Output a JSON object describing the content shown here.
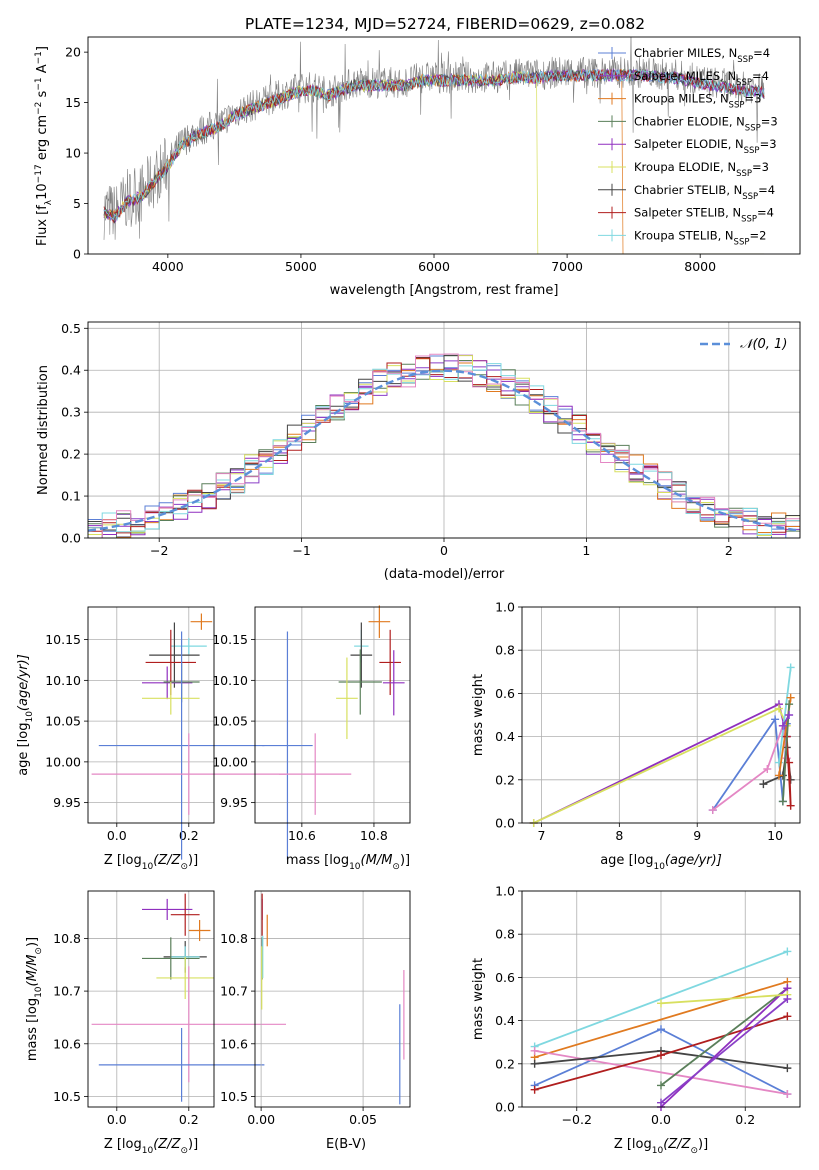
{
  "figure": {
    "title": "PLATE=1234, MJD=52724, FIBERID=0629, z=0.082"
  },
  "colors": {
    "chabrier_miles": "#5b7fd6",
    "salpeter_miles": "#8a3fc7",
    "kroupa_miles": "#e07a20",
    "chabrier_elodie": "#5a7f5a",
    "salpeter_elodie": "#8f2fbf",
    "kroupa_elodie": "#d8e060",
    "chabrier_stelib": "#444444",
    "salpeter_stelib": "#b01e1e",
    "kroupa_stelib": "#7fd8e0",
    "pink": "#e487c4",
    "data": "#808080",
    "normal": "#5b8fd9",
    "grid": "#b0b0b0"
  },
  "chart_data": [
    {
      "id": "spectrum",
      "type": "line",
      "xlabel": "wavelength [Angstrom, rest frame]",
      "ylabel": "Flux [f",
      "ylabel_sub": "λ",
      "ylabel_rest": "10",
      "ylabel_sup1": "−17",
      "ylabel_tail": " erg cm",
      "ylabel_sup2": "−2",
      "ylabel_tail2": " s",
      "ylabel_sup3": "−1",
      "ylabel_tail3": " A",
      "ylabel_sup4": "−1",
      "ylabel_end": "]",
      "xlim": [
        3400,
        8750
      ],
      "ylim": [
        0,
        21.5
      ],
      "xticks": [
        4000,
        5000,
        6000,
        7000,
        8000
      ],
      "yticks": [
        0,
        5,
        10,
        15,
        20
      ],
      "grid": false,
      "legend_position": "top-right",
      "continuum": {
        "x": [
          3500,
          3600,
          3700,
          3800,
          3900,
          4000,
          4100,
          4200,
          4300,
          4400,
          4500,
          4600,
          4700,
          4800,
          4900,
          5000,
          5100,
          5200,
          5300,
          5400,
          5500,
          5600,
          5700,
          5800,
          5900,
          6000,
          6100,
          6200,
          6300,
          6400,
          6500,
          6600,
          6700,
          6800,
          6900,
          7000,
          7100,
          7200,
          7300,
          7400,
          7500,
          7600,
          7700,
          7800,
          7900,
          8000,
          8100,
          8200,
          8300,
          8400,
          8500
        ],
        "y": [
          4.5,
          4.0,
          5.5,
          6.0,
          7.5,
          9.0,
          11.0,
          12.0,
          12.5,
          13.0,
          14.0,
          14.5,
          15.0,
          15.5,
          16.0,
          16.5,
          16.5,
          16.0,
          16.5,
          17.0,
          17.0,
          17.0,
          17.0,
          17.0,
          17.5,
          17.5,
          17.5,
          17.5,
          17.5,
          17.5,
          17.5,
          17.8,
          17.8,
          17.8,
          18.0,
          18.0,
          18.0,
          18.0,
          18.0,
          18.0,
          18.0,
          18.0,
          17.8,
          17.8,
          17.5,
          17.2,
          17.0,
          16.8,
          16.5,
          16.5,
          16.2
        ]
      },
      "series": [
        {
          "name": "Chabrier MILES, N",
          "sub": "SSP",
          "tail": "=4",
          "color_key": "chabrier_miles"
        },
        {
          "name": "Salpeter MILES, N",
          "sub": "SSP",
          "tail": "=4",
          "color_key": "salpeter_miles"
        },
        {
          "name": "Kroupa MILES, N",
          "sub": "SSP",
          "tail": "=3",
          "color_key": "kroupa_miles"
        },
        {
          "name": "Chabrier ELODIE, N",
          "sub": "SSP",
          "tail": "=3",
          "color_key": "chabrier_elodie"
        },
        {
          "name": "Salpeter ELODIE, N",
          "sub": "SSP",
          "tail": "=3",
          "color_key": "salpeter_elodie"
        },
        {
          "name": "Kroupa ELODIE, N",
          "sub": "SSP",
          "tail": "=3",
          "color_key": "kroupa_elodie"
        },
        {
          "name": "Chabrier STELIB, N",
          "sub": "SSP",
          "tail": "=4",
          "color_key": "chabrier_stelib"
        },
        {
          "name": "Salpeter STELIB, N",
          "sub": "SSP",
          "tail": "=4",
          "color_key": "salpeter_stelib"
        },
        {
          "name": "Kroupa STELIB, N",
          "sub": "SSP",
          "tail": "=2",
          "color_key": "kroupa_stelib"
        }
      ],
      "cutoffs": [
        {
          "color_key": "kroupa_elodie",
          "x": 6780
        },
        {
          "color_key": "kroupa_miles",
          "x": 7420
        }
      ]
    },
    {
      "id": "residuals",
      "type": "histogram",
      "xlabel": "(data-model)/error",
      "ylabel": "Normed distribution",
      "xlim": [
        -2.5,
        2.5
      ],
      "ylim": [
        0,
        0.515
      ],
      "xticks": [
        -2,
        -1,
        0,
        1,
        2
      ],
      "xtick_labels": [
        "−2",
        "−1",
        "0",
        "1",
        "2"
      ],
      "yticks": [
        0.0,
        0.1,
        0.2,
        0.3,
        0.4,
        0.5
      ],
      "grid": true,
      "legend": "𝒩(0, 1)",
      "legend_position": "top-right",
      "bin_width": 0.1,
      "bin_start": -2.5
    },
    {
      "id": "age_vs_Z",
      "type": "errorbar",
      "xlabel": "Z [log",
      "xlabel_sub": "10",
      "xlabel_tail": "(Z/Z",
      "xlabel_sub2": "⊙",
      "xlabel_end": ")]",
      "ylabel": "age  [log",
      "ylabel_sub": "10",
      "ylabel_tail": "(age/yr)]",
      "xlim": [
        -0.08,
        0.27
      ],
      "ylim": [
        9.925,
        10.19
      ],
      "xticks": [
        0.0,
        0.2
      ],
      "yticks": [
        9.95,
        10.0,
        10.05,
        10.1,
        10.15
      ],
      "points": [
        {
          "color_key": "kroupa_miles",
          "x": 0.235,
          "xerr": 0.03,
          "y": 10.172,
          "yerr": 0.01
        },
        {
          "color_key": "kroupa_stelib",
          "x": 0.2,
          "xerr": 0.05,
          "y": 10.142,
          "yerr": 0.01
        },
        {
          "color_key": "chabrier_stelib",
          "x": 0.16,
          "xerr": 0.07,
          "y": 10.131,
          "yerr": 0.04
        },
        {
          "color_key": "salpeter_stelib",
          "x": 0.15,
          "xerr": 0.07,
          "y": 10.122,
          "yerr": 0.04
        },
        {
          "color_key": "salpeter_elodie",
          "x": 0.14,
          "xerr": 0.07,
          "y": 10.097,
          "yerr": 0.02
        },
        {
          "color_key": "chabrier_elodie",
          "x": 0.18,
          "xerr": 0.05,
          "y": 10.098,
          "yerr": 0.025
        },
        {
          "color_key": "kroupa_elodie",
          "x": 0.15,
          "xerr": 0.08,
          "y": 10.078,
          "yerr": 0.02
        },
        {
          "color_key": "chabrier_miles",
          "x": 0.18,
          "xerr": 0.23,
          "y": 10.02,
          "yerr": 0.14
        },
        {
          "color_key": "pink",
          "x": 0.2,
          "xerr": 0.27,
          "y": 9.985,
          "yerr": 0.05
        }
      ]
    },
    {
      "id": "age_vs_mass",
      "type": "errorbar",
      "xlabel": "mass [log",
      "xlabel_sub": "10",
      "xlabel_tail": "(M/M",
      "xlabel_sub2": "⊙",
      "xlabel_end": ")]",
      "xlim": [
        10.47,
        10.9
      ],
      "ylim": [
        9.925,
        10.19
      ],
      "xticks": [
        10.6,
        10.8
      ],
      "yticks": [
        9.95,
        10.0,
        10.05,
        10.1,
        10.15
      ],
      "points": [
        {
          "color_key": "kroupa_miles",
          "x": 10.815,
          "xerr": 0.03,
          "y": 10.172,
          "yerr": 0.02
        },
        {
          "color_key": "kroupa_stelib",
          "x": 10.765,
          "xerr": 0.02,
          "y": 10.142,
          "yerr": 0.02
        },
        {
          "color_key": "chabrier_stelib",
          "x": 10.765,
          "xerr": 0.03,
          "y": 10.131,
          "yerr": 0.04
        },
        {
          "color_key": "salpeter_stelib",
          "x": 10.845,
          "xerr": 0.03,
          "y": 10.122,
          "yerr": 0.04
        },
        {
          "color_key": "salpeter_elodie",
          "x": 10.855,
          "xerr": 0.03,
          "y": 10.097,
          "yerr": 0.04
        },
        {
          "color_key": "chabrier_elodie",
          "x": 10.762,
          "xerr": 0.06,
          "y": 10.098,
          "yerr": 0.04
        },
        {
          "color_key": "kroupa_elodie",
          "x": 10.725,
          "xerr": 0.03,
          "y": 10.078,
          "yerr": 0.05
        },
        {
          "color_key": "chabrier_miles",
          "x": 10.56,
          "xerr": 0.07,
          "y": 10.02,
          "yerr": 0.14
        },
        {
          "color_key": "pink",
          "x": 10.637,
          "xerr": 0.1,
          "y": 9.985,
          "yerr": 0.05
        }
      ]
    },
    {
      "id": "massweight_vs_age",
      "type": "line",
      "xlabel": "age  [log",
      "xlabel_sub": "10",
      "xlabel_tail": "(age/yr)]",
      "ylabel": "mass weight",
      "xlim": [
        6.75,
        10.32
      ],
      "ylim": [
        0,
        1
      ],
      "xticks": [
        7,
        8,
        9,
        10
      ],
      "yticks": [
        0.0,
        0.2,
        0.4,
        0.6,
        0.8,
        1.0
      ],
      "grid": true,
      "series": [
        {
          "color_key": "salpeter_elodie",
          "x": [
            6.9,
            10.05,
            10.15
          ],
          "y": [
            0.0,
            0.55,
            0.4
          ]
        },
        {
          "color_key": "kroupa_elodie",
          "x": [
            6.9,
            10.05,
            10.15
          ],
          "y": [
            0.0,
            0.53,
            0.45
          ]
        },
        {
          "color_key": "chabrier_miles",
          "x": [
            9.2,
            10.0,
            10.1,
            10.15
          ],
          "y": [
            0.06,
            0.48,
            0.1,
            0.46
          ]
        },
        {
          "color_key": "pink",
          "x": [
            9.2,
            9.9,
            10.1,
            10.15
          ],
          "y": [
            0.06,
            0.25,
            0.45,
            0.3
          ]
        },
        {
          "color_key": "chabrier_stelib",
          "x": [
            9.85,
            10.1,
            10.15,
            10.2
          ],
          "y": [
            0.18,
            0.22,
            0.35,
            0.2
          ]
        },
        {
          "color_key": "kroupa_stelib",
          "x": [
            10.05,
            10.2
          ],
          "y": [
            0.28,
            0.72
          ]
        },
        {
          "color_key": "kroupa_miles",
          "x": [
            10.05,
            10.2
          ],
          "y": [
            0.22,
            0.58
          ]
        },
        {
          "color_key": "salpeter_stelib",
          "x": [
            10.15,
            10.2,
            10.18
          ],
          "y": [
            0.4,
            0.08,
            0.28
          ]
        },
        {
          "color_key": "chabrier_elodie",
          "x": [
            10.1,
            10.18
          ],
          "y": [
            0.1,
            0.55
          ]
        },
        {
          "color_key": "salpeter_miles",
          "x": [
            10.1,
            10.18
          ],
          "y": [
            0.45,
            0.5
          ]
        }
      ]
    },
    {
      "id": "mass_vs_Z",
      "type": "errorbar",
      "xlabel": "Z [log",
      "xlabel_sub": "10",
      "xlabel_tail": "(Z/Z",
      "xlabel_sub2": "⊙",
      "xlabel_end": ")]",
      "ylabel": "mass [log",
      "ylabel_sub": "10",
      "ylabel_tail": "(M/M",
      "ylabel_sub2": "⊙",
      "ylabel_end": ")]",
      "xlim": [
        -0.08,
        0.27
      ],
      "ylim": [
        10.48,
        10.89
      ],
      "xticks": [
        0.0,
        0.2
      ],
      "yticks": [
        10.5,
        10.6,
        10.7,
        10.8
      ],
      "points": [
        {
          "color_key": "salpeter_elodie",
          "x": 0.14,
          "xerr": 0.07,
          "y": 10.855,
          "yerr": 0.02
        },
        {
          "color_key": "salpeter_stelib",
          "x": 0.19,
          "xerr": 0.04,
          "y": 10.845,
          "yerr": 0.04
        },
        {
          "color_key": "kroupa_miles",
          "x": 0.23,
          "xerr": 0.03,
          "y": 10.815,
          "yerr": 0.02
        },
        {
          "color_key": "chabrier_stelib",
          "x": 0.19,
          "xerr": 0.06,
          "y": 10.765,
          "yerr": 0.03
        },
        {
          "color_key": "kroupa_stelib",
          "x": 0.19,
          "xerr": 0.04,
          "y": 10.765,
          "yerr": 0.02
        },
        {
          "color_key": "chabrier_elodie",
          "x": 0.15,
          "xerr": 0.08,
          "y": 10.762,
          "yerr": 0.04
        },
        {
          "color_key": "kroupa_elodie",
          "x": 0.19,
          "xerr": 0.08,
          "y": 10.725,
          "yerr": 0.04
        },
        {
          "color_key": "pink",
          "x": 0.2,
          "xerr": 0.27,
          "y": 10.637,
          "yerr": 0.11
        },
        {
          "color_key": "chabrier_miles",
          "x": 0.18,
          "xerr": 0.23,
          "y": 10.56,
          "yerr": 0.07
        }
      ]
    },
    {
      "id": "mass_vs_ebv",
      "type": "errorbar",
      "xlabel": "E(B-V)",
      "xlim": [
        -0.003,
        0.073
      ],
      "ylim": [
        10.48,
        10.89
      ],
      "xticks": [
        0.0,
        0.05
      ],
      "xtick_labels": [
        "0.00",
        "0.05"
      ],
      "yticks": [
        10.5,
        10.6,
        10.7,
        10.8
      ],
      "points": [
        {
          "color_key": "salpeter_elodie",
          "x": 0.0005,
          "xerr": 0,
          "y": 10.855,
          "yerr": 0.02
        },
        {
          "color_key": "salpeter_stelib",
          "x": 0.0005,
          "xerr": 0,
          "y": 10.845,
          "yerr": 0.04
        },
        {
          "color_key": "kroupa_miles",
          "x": 0.003,
          "xerr": 0,
          "y": 10.815,
          "yerr": 0.03
        },
        {
          "color_key": "chabrier_elodie",
          "x": 0.0005,
          "xerr": 0,
          "y": 10.762,
          "yerr": 0.04
        },
        {
          "color_key": "kroupa_stelib",
          "x": 0.0008,
          "xerr": 0,
          "y": 10.765,
          "yerr": 0.04
        },
        {
          "color_key": "kroupa_elodie",
          "x": 0.0003,
          "xerr": 0,
          "y": 10.725,
          "yerr": 0.06
        },
        {
          "color_key": "pink",
          "x": 0.07,
          "xerr": 0,
          "y": 10.655,
          "yerr": 0.085
        },
        {
          "color_key": "chabrier_miles",
          "x": 0.068,
          "xerr": 0,
          "y": 10.58,
          "yerr": 0.095
        }
      ]
    },
    {
      "id": "massweight_vs_Z",
      "type": "line",
      "xlabel": "Z [log",
      "xlabel_sub": "10",
      "xlabel_tail": "(Z/Z",
      "xlabel_sub2": "⊙",
      "xlabel_end": ")]",
      "ylabel": "mass weight",
      "xlim": [
        -0.33,
        0.33
      ],
      "ylim": [
        0,
        1
      ],
      "xticks": [
        -0.2,
        0.0,
        0.2
      ],
      "xtick_labels": [
        "−0.2",
        "0.0",
        "0.2"
      ],
      "yticks": [
        0.0,
        0.2,
        0.4,
        0.6,
        0.8,
        1.0
      ],
      "grid": true,
      "series": [
        {
          "color_key": "kroupa_stelib",
          "x": [
            -0.3,
            0.3
          ],
          "y": [
            0.28,
            0.72
          ]
        },
        {
          "color_key": "kroupa_miles",
          "x": [
            -0.3,
            0.3
          ],
          "y": [
            0.23,
            0.58
          ]
        },
        {
          "color_key": "chabrier_miles",
          "x": [
            -0.3,
            0.0,
            0.3
          ],
          "y": [
            0.1,
            0.36,
            0.06
          ]
        },
        {
          "color_key": "pink",
          "x": [
            -0.3,
            0.3
          ],
          "y": [
            0.26,
            0.06
          ]
        },
        {
          "color_key": "chabrier_stelib",
          "x": [
            -0.3,
            0.0,
            0.3
          ],
          "y": [
            0.2,
            0.26,
            0.18
          ]
        },
        {
          "color_key": "salpeter_stelib",
          "x": [
            -0.3,
            0.0,
            0.3
          ],
          "y": [
            0.08,
            0.24,
            0.42
          ]
        },
        {
          "color_key": "chabrier_elodie",
          "x": [
            0.0,
            0.3
          ],
          "y": [
            0.1,
            0.55
          ]
        },
        {
          "color_key": "salpeter_elodie",
          "x": [
            0.0,
            0.3
          ],
          "y": [
            0.0,
            0.55
          ]
        },
        {
          "color_key": "kroupa_elodie",
          "x": [
            0.0,
            0.3
          ],
          "y": [
            0.48,
            0.52
          ]
        },
        {
          "color_key": "salpeter_miles",
          "x": [
            0.0,
            0.3
          ],
          "y": [
            0.02,
            0.5
          ]
        }
      ]
    }
  ]
}
